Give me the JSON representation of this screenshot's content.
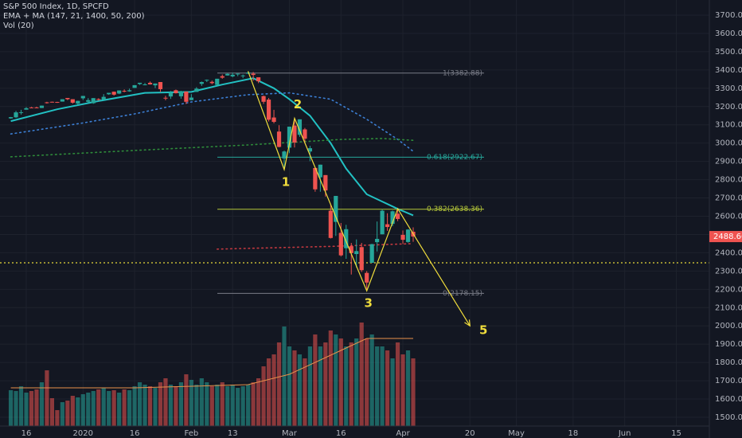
{
  "chart_data": {
    "type": "candlestick",
    "title": "S&P 500 Index, 1D, SPCFD",
    "indicator_title": "EMA + MA (147, 21, 1400, 50, 200)",
    "volume_title": "Vol (20)",
    "up_color": "#26a69a",
    "down_color": "#ef5350",
    "categories": [
      "2019-12-11",
      "2019-12-12",
      "2019-12-13",
      "2019-12-16",
      "2019-12-17",
      "2019-12-18",
      "2019-12-19",
      "2019-12-20",
      "2019-12-23",
      "2019-12-24",
      "2019-12-26",
      "2019-12-27",
      "2019-12-30",
      "2019-12-31",
      "2020-01-02",
      "2020-01-03",
      "2020-01-06",
      "2020-01-07",
      "2020-01-08",
      "2020-01-09",
      "2020-01-10",
      "2020-01-13",
      "2020-01-14",
      "2020-01-15",
      "2020-01-16",
      "2020-01-17",
      "2020-01-21",
      "2020-01-22",
      "2020-01-23",
      "2020-01-24",
      "2020-01-27",
      "2020-01-28",
      "2020-01-29",
      "2020-01-30",
      "2020-01-31",
      "2020-02-03",
      "2020-02-04",
      "2020-02-05",
      "2020-02-06",
      "2020-02-07",
      "2020-02-10",
      "2020-02-11",
      "2020-02-12",
      "2020-02-13",
      "2020-02-14",
      "2020-02-18",
      "2020-02-19",
      "2020-02-20",
      "2020-02-21",
      "2020-02-24",
      "2020-02-25",
      "2020-02-26",
      "2020-02-27",
      "2020-02-28",
      "2020-03-02",
      "2020-03-03",
      "2020-03-04",
      "2020-03-05",
      "2020-03-06",
      "2020-03-09",
      "2020-03-10",
      "2020-03-11",
      "2020-03-12",
      "2020-03-13",
      "2020-03-16",
      "2020-03-17",
      "2020-03-18",
      "2020-03-19",
      "2020-03-20",
      "2020-03-23",
      "2020-03-24",
      "2020-03-25",
      "2020-03-26",
      "2020-03-27",
      "2020-03-30",
      "2020-03-31",
      "2020-04-01",
      "2020-04-02",
      "2020-04-03"
    ],
    "open": [
      3135,
      3141,
      3166,
      3183,
      3195,
      3195,
      3192,
      3223,
      3226,
      3225,
      3227,
      3247,
      3240,
      3216,
      3245,
      3226,
      3218,
      3241,
      3238,
      3267,
      3281,
      3271,
      3286,
      3283,
      3302,
      3323,
      3321,
      3330,
      3316,
      3334,
      3248,
      3255,
      3289,
      3256,
      3282,
      3235,
      3280,
      3324,
      3344,
      3335,
      3318,
      3366,
      3370,
      3365,
      3379,
      3370,
      3380,
      3380,
      3360,
      3257,
      3238,
      3140,
      3063,
      2916,
      2975,
      3096,
      3045,
      3075,
      2954,
      2864,
      2813,
      2825,
      2630,
      2569,
      2509,
      2425,
      2436,
      2393,
      2431,
      2290,
      2345,
      2458,
      2501,
      2556,
      2558,
      2614,
      2498,
      2459,
      2515
    ],
    "high": [
      3143,
      3176,
      3182,
      3197,
      3198,
      3199,
      3205,
      3226,
      3227,
      3226,
      3240,
      3247,
      3240,
      3232,
      3258,
      3246,
      3246,
      3245,
      3268,
      3275,
      3282,
      3288,
      3294,
      3298,
      3317,
      3330,
      3329,
      3337,
      3326,
      3334,
      3259,
      3285,
      3293,
      3286,
      3282,
      3268,
      3306,
      3337,
      3348,
      3342,
      3352,
      3375,
      3381,
      3385,
      3381,
      3375,
      3393,
      3389,
      3360,
      3260,
      3247,
      3182,
      3098,
      2959,
      3090,
      3136,
      3130,
      3083,
      2985,
      2864,
      2882,
      2825,
      2661,
      2711,
      2563,
      2553,
      2454,
      2473,
      2454,
      2300,
      2449,
      2571,
      2638,
      2616,
      2631,
      2641,
      2522,
      2529,
      2539
    ],
    "low": [
      3133,
      3138,
      3156,
      3183,
      3191,
      3191,
      3192,
      3216,
      3222,
      3220,
      3227,
      3235,
      3216,
      3212,
      3236,
      3223,
      3215,
      3232,
      3236,
      3264,
      3260,
      3268,
      3278,
      3281,
      3302,
      3318,
      3316,
      3320,
      3301,
      3280,
      3234,
      3242,
      3271,
      3243,
      3214,
      3235,
      3280,
      3313,
      3334,
      3322,
      3317,
      3352,
      3369,
      3360,
      3366,
      3355,
      3378,
      3341,
      3328,
      3214,
      3118,
      3108,
      2977,
      2855,
      2945,
      2976,
      3034,
      2999,
      2901,
      2734,
      2734,
      2707,
      2478,
      2492,
      2380,
      2367,
      2281,
      2319,
      2295,
      2192,
      2345,
      2407,
      2501,
      2520,
      2545,
      2573,
      2448,
      2455,
      2460
    ],
    "close": [
      3142,
      3168,
      3169,
      3191,
      3192,
      3191,
      3205,
      3221,
      3224,
      3223,
      3240,
      3240,
      3221,
      3231,
      3258,
      3235,
      3246,
      3237,
      3253,
      3275,
      3265,
      3288,
      3283,
      3289,
      3317,
      3330,
      3321,
      3321,
      3326,
      3295,
      3244,
      3276,
      3273,
      3284,
      3226,
      3249,
      3298,
      3334,
      3346,
      3328,
      3352,
      3358,
      3379,
      3374,
      3380,
      3370,
      3386,
      3373,
      3338,
      3226,
      3128,
      3116,
      2979,
      2954,
      3090,
      3003,
      3130,
      3024,
      2972,
      2747,
      2882,
      2741,
      2481,
      2711,
      2386,
      2529,
      2398,
      2409,
      2305,
      2237,
      2447,
      2476,
      2630,
      2541,
      2627,
      2585,
      2471,
      2527,
      2488.66
    ],
    "volume": [
      45,
      44,
      50,
      42,
      44,
      46,
      55,
      70,
      35,
      20,
      30,
      32,
      38,
      36,
      40,
      42,
      44,
      46,
      48,
      44,
      45,
      42,
      46,
      45,
      50,
      55,
      52,
      50,
      48,
      55,
      60,
      52,
      50,
      55,
      65,
      58,
      52,
      60,
      55,
      50,
      52,
      55,
      50,
      52,
      48,
      50,
      52,
      55,
      60,
      75,
      85,
      90,
      105,
      125,
      100,
      95,
      90,
      85,
      100,
      115,
      100,
      105,
      120,
      115,
      110,
      100,
      105,
      110,
      130,
      110,
      115,
      100,
      100,
      95,
      85,
      105,
      90,
      95,
      85
    ],
    "vol_ma": {
      "color": "#e8904a",
      "x": [
        "2019-12-11",
        "2020-01-16",
        "2020-02-19",
        "2020-03-02",
        "2020-03-16",
        "2020-03-23",
        "2020-04-03"
      ],
      "values": [
        48,
        48,
        52,
        65,
        95,
        110,
        110
      ]
    },
    "indicators": [
      {
        "color": "#22c1c3",
        "style": "solid",
        "x": [
          "2019-12-11",
          "2019-12-24",
          "2020-01-07",
          "2020-01-21",
          "2020-02-03",
          "2020-02-11",
          "2020-02-20",
          "2020-02-26",
          "2020-03-02",
          "2020-03-06",
          "2020-03-12",
          "2020-03-17",
          "2020-03-23",
          "2020-03-26",
          "2020-03-31",
          "2020-04-03"
        ],
        "values": [
          3120,
          3185,
          3230,
          3275,
          3280,
          3320,
          3355,
          3300,
          3240,
          3150,
          3000,
          2860,
          2720,
          2680,
          2640,
          2605
        ]
      },
      {
        "color": "#3c7fd4",
        "style": "dotted",
        "x": [
          "2019-12-11",
          "2020-01-02",
          "2020-01-16",
          "2020-02-03",
          "2020-02-19",
          "2020-03-02",
          "2020-03-12",
          "2020-03-23",
          "2020-03-31",
          "2020-04-03"
        ],
        "values": [
          3050,
          3110,
          3160,
          3225,
          3265,
          3275,
          3240,
          3130,
          3020,
          2955
        ]
      },
      {
        "color": "#2e8b3a",
        "style": "dotted",
        "x": [
          "2019-12-11",
          "2020-01-16",
          "2020-02-19",
          "2020-03-16",
          "2020-03-26",
          "2020-04-03"
        ],
        "values": [
          2925,
          2960,
          2990,
          3020,
          3025,
          3015
        ]
      },
      {
        "color": "#c2383f",
        "style": "dotted",
        "x": [
          "2020-02-10",
          "2020-03-12",
          "2020-04-03"
        ],
        "values": [
          2420,
          2435,
          2450
        ]
      }
    ],
    "support": {
      "value": 2345,
      "color": "#e6d83a"
    },
    "fib": [
      {
        "label": "1(3382.88)",
        "value": 3382.88,
        "color": "#787b86"
      },
      {
        "label": "0.618(2922.67)",
        "value": 2922.67,
        "color": "#26a69a"
      },
      {
        "label": "0.382(2638.36)",
        "value": 2638.36,
        "color": "#b5c739"
      },
      {
        "label": "0(2178.15)",
        "value": 2178.15,
        "color": "#787b86"
      }
    ],
    "wave": {
      "color": "#f0dd3c",
      "x": [
        "2020-02-19",
        "2020-02-28",
        "2020-03-03",
        "2020-03-23",
        "2020-03-31",
        "2020-04-20"
      ],
      "values": [
        3393,
        2855,
        3136,
        2192,
        2641,
        2000
      ],
      "labels": [
        null,
        "1",
        "2",
        "3",
        null,
        "5"
      ]
    },
    "ylim": [
      1500,
      3700
    ],
    "yticks": [
      {
        "value": 1500,
        "label": "1500.00"
      },
      {
        "value": 1600,
        "label": "1600.00"
      },
      {
        "value": 1700,
        "label": "1700.00"
      },
      {
        "value": 1800,
        "label": "1800.00"
      },
      {
        "value": 1900,
        "label": "1900.00"
      },
      {
        "value": 2000,
        "label": "2000.00"
      },
      {
        "value": 2100,
        "label": "2100.00"
      },
      {
        "value": 2200,
        "label": "2200.00"
      },
      {
        "value": 2300,
        "label": "2300.00"
      },
      {
        "value": 2400,
        "label": "2400.00"
      },
      {
        "value": 2500,
        "label": "2500.00"
      },
      {
        "value": 2600,
        "label": "2600.00"
      },
      {
        "value": 2700,
        "label": "2700.00"
      },
      {
        "value": 2800,
        "label": "2800.00"
      },
      {
        "value": 2900,
        "label": "2900.00"
      },
      {
        "value": 3000,
        "label": "3000.00"
      },
      {
        "value": 3100,
        "label": "3100.00"
      },
      {
        "value": 3200,
        "label": "3200.00"
      },
      {
        "value": 3300,
        "label": "3300.00"
      },
      {
        "value": 3400,
        "label": "3400.00"
      },
      {
        "value": 3500,
        "label": "3500.00"
      },
      {
        "value": 3600,
        "label": "3600.00"
      },
      {
        "value": 3700,
        "label": "3700.00"
      }
    ],
    "xticks": [
      {
        "value": "2019-12-16",
        "label": "16"
      },
      {
        "value": "2020-01-02",
        "label": "2020"
      },
      {
        "value": "2020-01-16",
        "label": "16"
      },
      {
        "value": "2020-02-03",
        "label": "Feb"
      },
      {
        "value": "2020-02-13",
        "label": "13"
      },
      {
        "value": "2020-03-02",
        "label": "Mar"
      },
      {
        "value": "2020-03-16",
        "label": "16"
      },
      {
        "value": "2020-04-01",
        "label": "Apr"
      },
      {
        "value": "2020-04-20",
        "label": "20"
      },
      {
        "value": "2020-05-01",
        "label": "May"
      },
      {
        "value": "2020-05-18",
        "label": "18"
      },
      {
        "value": "2020-06-01",
        "label": "Jun"
      },
      {
        "value": "2020-06-15",
        "label": "15"
      }
    ],
    "grid": true
  }
}
